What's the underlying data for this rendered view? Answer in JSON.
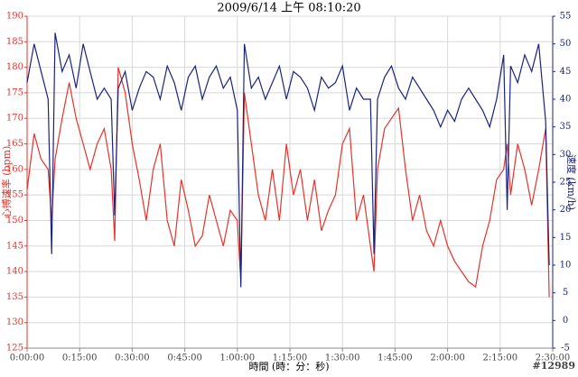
{
  "chart_data": {
    "type": "line",
    "title": "2009/6/14 上午 08:10:20",
    "xlabel": "時間 (時：分：秒)",
    "ylabel": "心搏速率 (bpm)",
    "y2label": "速度 (km/h)",
    "watermark": "#12989",
    "x": [
      0,
      2,
      4,
      6,
      7,
      8,
      10,
      12,
      14,
      16,
      18,
      20,
      22,
      24,
      25,
      26,
      28,
      30,
      32,
      34,
      36,
      38,
      40,
      42,
      44,
      46,
      48,
      50,
      52,
      54,
      56,
      58,
      60,
      61,
      62,
      64,
      66,
      68,
      70,
      72,
      74,
      76,
      78,
      80,
      82,
      84,
      86,
      88,
      90,
      92,
      94,
      96,
      98,
      99,
      100,
      102,
      104,
      106,
      108,
      110,
      112,
      114,
      116,
      118,
      120,
      122,
      124,
      126,
      128,
      130,
      132,
      134,
      136,
      137,
      138,
      140,
      142,
      144,
      146,
      148,
      149
    ],
    "series": [
      {
        "name": "心搏速率",
        "color": "#e8322a",
        "values": [
          156,
          167,
          162,
          160,
          150,
          162,
          170,
          177,
          170,
          165,
          160,
          165,
          168,
          160,
          146,
          180,
          175,
          165,
          158,
          150,
          160,
          165,
          150,
          145,
          158,
          152,
          145,
          147,
          155,
          150,
          145,
          152,
          150,
          138,
          175,
          165,
          155,
          150,
          160,
          150,
          165,
          155,
          160,
          150,
          158,
          148,
          152,
          155,
          165,
          168,
          150,
          155,
          145,
          140,
          160,
          168,
          170,
          172,
          160,
          150,
          155,
          148,
          145,
          150,
          145,
          142,
          140,
          138,
          137,
          145,
          150,
          158,
          160,
          165,
          155,
          165,
          160,
          153,
          160,
          168,
          135
        ]
      },
      {
        "name": "速度",
        "color": "#1a237e",
        "axis": "y2",
        "values": [
          43,
          50,
          45,
          40,
          12,
          52,
          45,
          48,
          42,
          50,
          45,
          40,
          42,
          40,
          19,
          42,
          45,
          38,
          42,
          45,
          44,
          40,
          46,
          43,
          38,
          44,
          46,
          40,
          44,
          46,
          42,
          44,
          38,
          6,
          50,
          42,
          44,
          40,
          43,
          46,
          40,
          45,
          44,
          42,
          38,
          44,
          42,
          43,
          46,
          38,
          42,
          40,
          40,
          12,
          40,
          44,
          46,
          42,
          40,
          44,
          42,
          40,
          38,
          35,
          38,
          36,
          40,
          42,
          40,
          38,
          35,
          40,
          48,
          20,
          46,
          43,
          48,
          45,
          50,
          36,
          10
        ]
      }
    ],
    "xlim": [
      0,
      150
    ],
    "xticks": [
      {
        "value": 0,
        "label": "0:00:00"
      },
      {
        "value": 15,
        "label": "0:15:00"
      },
      {
        "value": 30,
        "label": "0:30:00"
      },
      {
        "value": 45,
        "label": "0:45:00"
      },
      {
        "value": 60,
        "label": "1:00:00"
      },
      {
        "value": 75,
        "label": "1:15:00"
      },
      {
        "value": 90,
        "label": "1:30:00"
      },
      {
        "value": 105,
        "label": "1:45:00"
      },
      {
        "value": 120,
        "label": "2:00:00"
      },
      {
        "value": 135,
        "label": "2:15:00"
      },
      {
        "value": 150,
        "label": "2:30:00"
      }
    ],
    "ylim": [
      125,
      190
    ],
    "yticks": [
      125,
      130,
      135,
      140,
      145,
      150,
      155,
      160,
      165,
      170,
      175,
      180,
      185,
      190
    ],
    "y2lim": [
      -5,
      55
    ],
    "y2ticks": [
      -5,
      0,
      5,
      10,
      15,
      20,
      25,
      30,
      35,
      40,
      45,
      50,
      55
    ],
    "grid": true
  }
}
